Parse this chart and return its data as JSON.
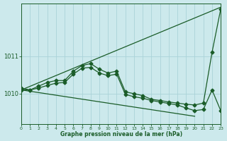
{
  "xlabel": "Graphe pression niveau de la mer (hPa)",
  "xlim": [
    0,
    23
  ],
  "ylim": [
    1009.2,
    1012.4
  ],
  "yticks": [
    1010,
    1011
  ],
  "xticks": [
    0,
    1,
    2,
    3,
    4,
    5,
    6,
    7,
    8,
    9,
    10,
    11,
    12,
    13,
    14,
    15,
    16,
    17,
    18,
    19,
    20,
    21,
    22,
    23
  ],
  "bg_color": "#cce9ec",
  "grid_color": "#aad3d8",
  "line_color": "#1a5c28",
  "series": [
    {
      "x": [
        0,
        23
      ],
      "y": [
        1010.1,
        1012.3
      ],
      "has_marker": false
    },
    {
      "x": [
        0,
        20
      ],
      "y": [
        1010.1,
        1009.4
      ],
      "has_marker": false
    },
    {
      "x": [
        0,
        1,
        2,
        3,
        4,
        5,
        6,
        7,
        8,
        9,
        10,
        11,
        12,
        13,
        14,
        15,
        16,
        17,
        18,
        19,
        20,
        21,
        22,
        23
      ],
      "y": [
        1010.15,
        1010.1,
        1010.2,
        1010.3,
        1010.35,
        1010.35,
        1010.6,
        1010.75,
        1010.8,
        1010.65,
        1010.55,
        1010.6,
        1010.05,
        1010.0,
        1009.95,
        1009.85,
        1009.82,
        1009.78,
        1009.75,
        1009.72,
        1009.7,
        1009.75,
        1011.1,
        1012.25
      ],
      "has_marker": true
    },
    {
      "x": [
        0,
        1,
        2,
        3,
        4,
        5,
        6,
        7,
        8,
        9,
        10,
        11,
        12,
        13,
        14,
        15,
        16,
        17,
        18,
        19,
        20,
        21,
        22,
        23
      ],
      "y": [
        1010.1,
        1010.1,
        1010.15,
        1010.22,
        1010.28,
        1010.3,
        1010.52,
        1010.68,
        1010.7,
        1010.55,
        1010.48,
        1010.52,
        1009.98,
        1009.92,
        1009.88,
        1009.82,
        1009.78,
        1009.74,
        1009.7,
        1009.62,
        1009.55,
        1009.58,
        1010.1,
        1009.55
      ],
      "has_marker": true
    }
  ],
  "markersize": 2.5,
  "linewidth": 0.9
}
